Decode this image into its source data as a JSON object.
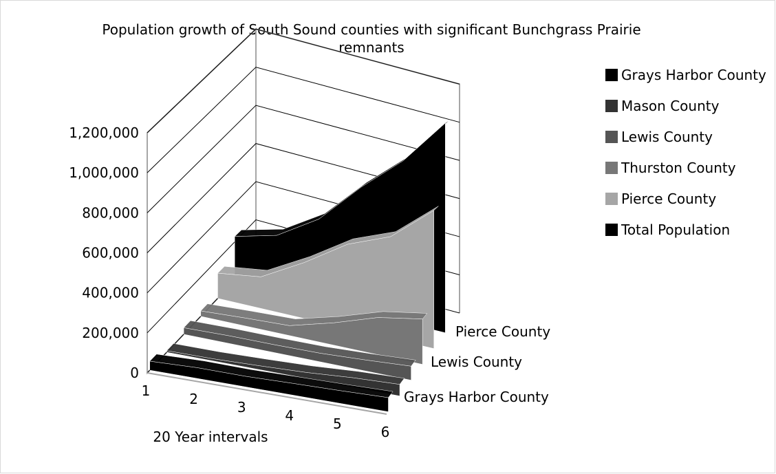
{
  "chart_data": {
    "type": "area",
    "variant": "3d-area",
    "title": "Population growth of South Sound counties with significant Bunchgrass Prairie remnants",
    "xlabel": "20 Year intervals",
    "ylabel": "",
    "categories": [
      "1",
      "2",
      "3",
      "4",
      "5",
      "6"
    ],
    "y_ticks": [
      "0",
      "200,000",
      "400,000",
      "600,000",
      "800,000",
      "1,000,000",
      "1,200,000"
    ],
    "ylim": [
      0,
      1200000
    ],
    "grid": true,
    "legend_position": "right",
    "depth_labels": [
      "Grays Harbor County",
      "Lewis County",
      "Pierce County"
    ],
    "series": [
      {
        "name": "Grays Harbor County",
        "color": "#000000",
        "values": [
          45000,
          54000,
          53000,
          59000,
          64000,
          71000
        ]
      },
      {
        "name": "Mason County",
        "color": "#333333",
        "values": [
          8000,
          11000,
          20000,
          31000,
          49000,
          60000
        ]
      },
      {
        "name": "Lewis County",
        "color": "#555555",
        "values": [
          35000,
          41000,
          42000,
          46000,
          59000,
          75000
        ]
      },
      {
        "name": "Thurston County",
        "color": "#777777",
        "values": [
          30000,
          44000,
          55000,
          124000,
          207000,
          252000
        ]
      },
      {
        "name": "Pierce County",
        "color": "#a6a6a6",
        "values": [
          145000,
          182000,
          322000,
          485000,
          587000,
          796000
        ]
      },
      {
        "name": "Total Population",
        "color": "#000000",
        "values": [
          263000,
          332000,
          492000,
          745000,
          966000,
          1254000
        ]
      }
    ]
  }
}
